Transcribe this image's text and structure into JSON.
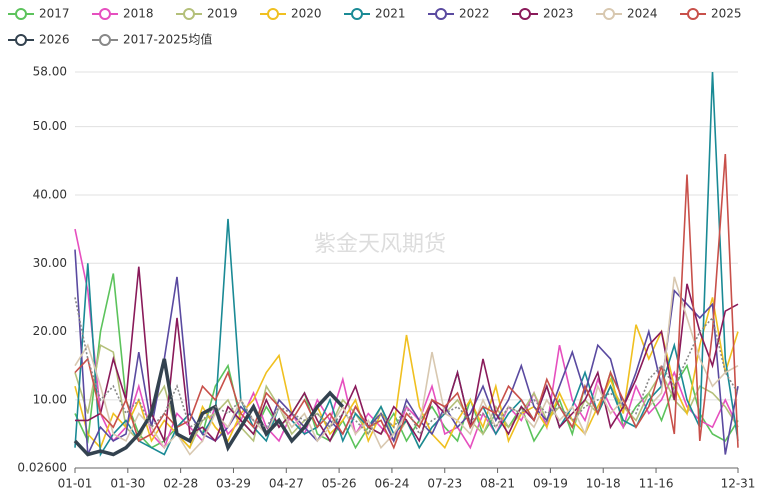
{
  "chart_data": {
    "type": "line",
    "watermark": "紫金天风期货",
    "x": [
      0,
      7,
      14,
      21,
      28,
      35,
      42,
      49,
      56,
      63,
      70,
      77,
      84,
      91,
      98,
      105,
      112,
      119,
      126,
      133,
      140,
      147,
      154,
      161,
      168,
      175,
      182,
      189,
      196,
      203,
      210,
      217,
      224,
      231,
      238,
      245,
      252,
      259,
      266,
      273,
      280,
      287,
      294,
      301,
      308,
      315,
      322,
      329,
      336,
      343,
      350,
      357,
      364
    ],
    "xlim": [
      0,
      364
    ],
    "xticks": [
      {
        "value": 0,
        "label": "01-01"
      },
      {
        "value": 29,
        "label": "01-30"
      },
      {
        "value": 58,
        "label": "02-28"
      },
      {
        "value": 87,
        "label": "03-29"
      },
      {
        "value": 116,
        "label": "04-27"
      },
      {
        "value": 145,
        "label": "05-26"
      },
      {
        "value": 174,
        "label": "06-24"
      },
      {
        "value": 203,
        "label": "07-23"
      },
      {
        "value": 232,
        "label": "08-21"
      },
      {
        "value": 261,
        "label": "09-19"
      },
      {
        "value": 290,
        "label": "10-18"
      },
      {
        "value": 319,
        "label": "11-16"
      },
      {
        "value": 364,
        "label": "12-31"
      }
    ],
    "ylim": [
      0.026,
      58
    ],
    "yticks": [
      {
        "value": 0.026,
        "label": "0.02600"
      },
      {
        "value": 10,
        "label": "10.00"
      },
      {
        "value": 20,
        "label": "20.00"
      },
      {
        "value": 30,
        "label": "30.00"
      },
      {
        "value": 40,
        "label": "40.00"
      },
      {
        "value": 50,
        "label": "50.00"
      },
      {
        "value": 58,
        "label": "58.00"
      }
    ],
    "grid": true,
    "series": [
      {
        "name": "2017",
        "color": "#5cc35c",
        "values": [
          8,
          4,
          20,
          28.5,
          10,
          5,
          3,
          4,
          6,
          8,
          5,
          12,
          15,
          7,
          5,
          9,
          6,
          8,
          11,
          5,
          4,
          7,
          3,
          6,
          5,
          8,
          4,
          7,
          9,
          6,
          4,
          10,
          5,
          8,
          6,
          9,
          4,
          7,
          10,
          5,
          12,
          8,
          14,
          6,
          9,
          11,
          7,
          12,
          15,
          8,
          5,
          4,
          7
        ]
      },
      {
        "name": "2018",
        "color": "#e64fbf",
        "values": [
          35,
          26,
          8,
          4,
          6,
          12,
          5,
          3,
          8,
          6,
          4,
          9,
          5,
          7,
          11,
          6,
          4,
          8,
          5,
          10,
          7,
          13,
          5,
          8,
          6,
          4,
          9,
          7,
          12,
          5,
          6,
          3,
          8,
          5,
          9,
          7,
          11,
          6,
          18,
          10,
          7,
          13,
          9,
          6,
          12,
          8,
          10,
          14,
          9,
          7,
          6,
          10,
          6
        ]
      },
      {
        "name": "2019",
        "color": "#b4c07a",
        "values": [
          14,
          8,
          18,
          17,
          6,
          4,
          9,
          12,
          5,
          3,
          7,
          8,
          10,
          6,
          4,
          12,
          9,
          5,
          7,
          8,
          6,
          10,
          8,
          5,
          9,
          4,
          7,
          3,
          6,
          8,
          10,
          7,
          5,
          9,
          6,
          8,
          11,
          7,
          9,
          6,
          10,
          8,
          12,
          9,
          7,
          11,
          14,
          10,
          8,
          12,
          11,
          9,
          6
        ]
      },
      {
        "name": "2020",
        "color": "#f0c020",
        "values": [
          12,
          5,
          3,
          8,
          6,
          10,
          4,
          7,
          5,
          3,
          9,
          6,
          4,
          8,
          10,
          14,
          16.5,
          8,
          6,
          9,
          5,
          7,
          10,
          4,
          8,
          6,
          19.5,
          9,
          5,
          3,
          7,
          10,
          6,
          12,
          4,
          8,
          9,
          6,
          11,
          7,
          5,
          9,
          13,
          8,
          21,
          16,
          20,
          12,
          8,
          18,
          25,
          14,
          20
        ]
      },
      {
        "name": "2021",
        "color": "#1a8a95",
        "values": [
          3,
          30,
          2,
          5,
          7,
          4,
          3,
          2,
          6,
          8,
          5,
          8,
          36.5,
          10,
          6,
          4,
          9,
          7,
          5,
          6,
          10,
          4,
          8,
          6,
          9,
          5,
          7,
          3,
          6,
          8,
          14,
          6,
          9,
          5,
          8,
          10,
          7,
          12,
          6,
          9,
          14,
          8,
          12,
          7,
          6,
          10,
          12,
          18,
          10,
          6,
          58,
          16,
          4
        ]
      },
      {
        "name": "2022",
        "color": "#5a4aa0",
        "values": [
          32,
          2,
          6,
          4,
          5,
          17,
          6,
          16,
          28,
          8,
          5,
          4,
          6,
          9,
          7,
          5,
          10,
          8,
          6,
          4,
          7,
          5,
          9,
          6,
          8,
          4,
          10,
          7,
          5,
          9,
          6,
          8,
          12,
          7,
          10,
          15,
          9,
          7,
          12,
          17,
          11,
          18,
          16,
          9,
          14,
          20,
          12,
          26,
          24,
          22,
          24,
          2,
          12
        ]
      },
      {
        "name": "2023",
        "color": "#8a1a5a",
        "values": [
          7,
          7,
          8,
          16,
          10,
          29.5,
          8,
          4,
          22,
          5,
          6,
          4,
          9,
          7,
          5,
          10,
          6,
          8,
          11,
          7,
          4,
          8,
          12,
          6,
          5,
          9,
          7,
          4,
          10,
          8,
          14,
          6,
          16,
          8,
          5,
          9,
          7,
          12,
          6,
          8,
          10,
          14,
          6,
          9,
          13,
          18,
          20,
          10,
          27,
          20,
          15,
          23,
          24
        ]
      },
      {
        "name": "2024",
        "color": "#d8c8b0",
        "values": [
          15,
          18,
          12,
          5,
          4,
          8,
          6,
          3,
          5,
          2,
          4,
          8,
          6,
          10,
          7,
          5,
          9,
          6,
          8,
          4,
          6,
          9,
          5,
          7,
          3,
          5,
          8,
          6,
          17,
          8,
          7,
          5,
          10,
          6,
          9,
          8,
          6,
          10,
          7,
          9,
          5,
          12,
          8,
          10,
          6,
          9,
          11,
          28,
          22,
          16,
          12,
          14,
          15
        ]
      },
      {
        "name": "2025",
        "color": "#c8504a",
        "values": [
          14,
          16,
          8,
          6,
          10,
          4,
          5,
          8,
          6,
          7,
          12,
          10,
          14,
          8,
          6,
          11,
          9,
          7,
          10,
          6,
          8,
          5,
          9,
          6,
          7,
          3,
          8,
          6,
          10,
          9,
          11,
          6,
          9,
          8,
          12,
          10,
          7,
          13,
          9,
          6,
          12,
          8,
          14,
          10,
          6,
          9,
          15,
          5,
          43,
          4,
          20,
          46,
          3
        ]
      },
      {
        "name": "2026",
        "color": "#33424f",
        "values": [
          4,
          2,
          2.5,
          2,
          3,
          5,
          8,
          16,
          5,
          4,
          8,
          9,
          3,
          6,
          9,
          5,
          7,
          4,
          6,
          9,
          11,
          9,
          null,
          null,
          null,
          null,
          null,
          null,
          null,
          null,
          null,
          null,
          null,
          null,
          null,
          null,
          null,
          null,
          null,
          null,
          null,
          null,
          null,
          null,
          null,
          null,
          null,
          null,
          null,
          null,
          null,
          null,
          null
        ]
      },
      {
        "name": "2017-2025均值",
        "color": "#888888",
        "values": [
          25,
          16,
          10,
          12,
          8,
          10,
          6,
          8,
          12,
          6,
          7,
          9,
          8,
          10,
          7,
          6,
          9,
          8,
          7,
          8,
          6,
          8,
          7,
          5,
          8,
          6,
          9,
          5,
          7,
          8,
          9,
          7,
          8,
          6,
          9,
          8,
          10,
          8,
          9,
          7,
          9,
          10,
          11,
          9,
          8,
          13,
          15,
          12,
          16,
          20,
          22,
          14,
          11
        ]
      }
    ]
  }
}
